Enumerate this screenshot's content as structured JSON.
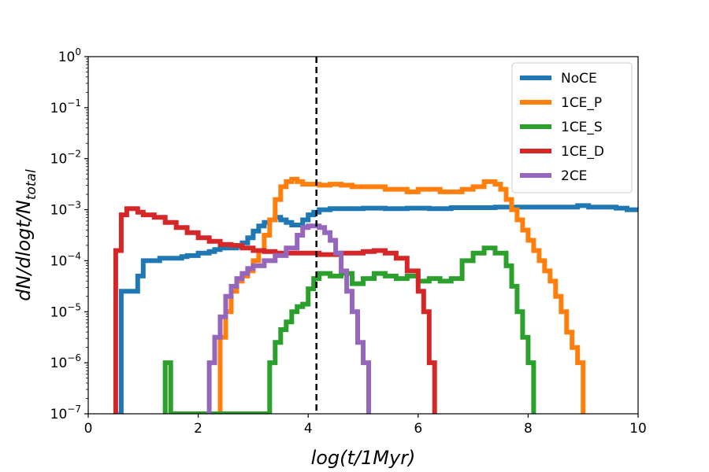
{
  "chart_data": {
    "type": "line",
    "title": "",
    "xlabel": "log(t/1Myr)",
    "ylabel": "dN/dlogt/N",
    "ylabel_sub": "total",
    "xlim": [
      0,
      10
    ],
    "ylim_log10": [
      -7,
      0
    ],
    "x_ticks": [
      0,
      2,
      4,
      6,
      8,
      10
    ],
    "x_tick_labels": [
      "0",
      "2",
      "4",
      "6",
      "8",
      "10"
    ],
    "y_ticks_log10": [
      -7,
      -6,
      -5,
      -4,
      -3,
      -2,
      -1,
      0
    ],
    "y_tick_bases": [
      "10",
      "10",
      "10",
      "10",
      "10",
      "10",
      "10",
      "10"
    ],
    "y_tick_exps": [
      "−7",
      "−6",
      "−5",
      "−4",
      "−3",
      "−2",
      "−1",
      "0"
    ],
    "vline_x": 4.15,
    "legend_position": "top-right",
    "series": [
      {
        "name": "NoCE",
        "color": "#1f77b4",
        "points": [
          [
            0.55,
            -7
          ],
          [
            0.6,
            -4.6
          ],
          [
            0.7,
            -4.6
          ],
          [
            0.8,
            -4.6
          ],
          [
            0.9,
            -4.3
          ],
          [
            1.0,
            -4.0
          ],
          [
            1.1,
            -4.0
          ],
          [
            1.2,
            -4.0
          ],
          [
            1.3,
            -3.95
          ],
          [
            1.4,
            -3.95
          ],
          [
            1.5,
            -3.95
          ],
          [
            1.6,
            -3.95
          ],
          [
            1.7,
            -3.92
          ],
          [
            1.8,
            -3.9
          ],
          [
            1.9,
            -3.9
          ],
          [
            2.0,
            -3.85
          ],
          [
            2.1,
            -3.85
          ],
          [
            2.2,
            -3.82
          ],
          [
            2.3,
            -3.78
          ],
          [
            2.4,
            -3.75
          ],
          [
            2.5,
            -3.75
          ],
          [
            2.6,
            -3.75
          ],
          [
            2.7,
            -3.72
          ],
          [
            2.8,
            -3.65
          ],
          [
            2.9,
            -3.55
          ],
          [
            3.0,
            -3.42
          ],
          [
            3.1,
            -3.32
          ],
          [
            3.2,
            -3.25
          ],
          [
            3.3,
            -3.2
          ],
          [
            3.4,
            -3.15
          ],
          [
            3.5,
            -3.2
          ],
          [
            3.6,
            -3.25
          ],
          [
            3.7,
            -3.3
          ],
          [
            3.8,
            -3.3
          ],
          [
            3.9,
            -3.2
          ],
          [
            4.0,
            -3.1
          ],
          [
            4.1,
            -3.05
          ],
          [
            4.2,
            -3.0
          ],
          [
            4.4,
            -2.98
          ],
          [
            4.6,
            -2.98
          ],
          [
            5.0,
            -2.97
          ],
          [
            5.4,
            -2.98
          ],
          [
            5.8,
            -2.97
          ],
          [
            6.2,
            -2.98
          ],
          [
            6.6,
            -2.96
          ],
          [
            7.0,
            -2.96
          ],
          [
            7.4,
            -2.95
          ],
          [
            7.8,
            -2.95
          ],
          [
            8.2,
            -2.95
          ],
          [
            8.6,
            -2.95
          ],
          [
            8.9,
            -2.92
          ],
          [
            9.1,
            -2.95
          ],
          [
            9.3,
            -2.95
          ],
          [
            9.6,
            -2.97
          ],
          [
            9.8,
            -3.0
          ],
          [
            10.0,
            -3.02
          ]
        ]
      },
      {
        "name": "1CE_P",
        "color": "#ff7f0e",
        "points": [
          [
            2.3,
            -7
          ],
          [
            2.4,
            -5.5
          ],
          [
            2.5,
            -5.0
          ],
          [
            2.6,
            -4.6
          ],
          [
            2.7,
            -4.4
          ],
          [
            2.8,
            -4.3
          ],
          [
            2.9,
            -4.2
          ],
          [
            3.0,
            -4.0
          ],
          [
            3.1,
            -3.8
          ],
          [
            3.2,
            -3.5
          ],
          [
            3.3,
            -3.2
          ],
          [
            3.4,
            -2.8
          ],
          [
            3.5,
            -2.55
          ],
          [
            3.6,
            -2.45
          ],
          [
            3.7,
            -2.4
          ],
          [
            3.8,
            -2.45
          ],
          [
            3.9,
            -2.5
          ],
          [
            4.0,
            -2.5
          ],
          [
            4.2,
            -2.52
          ],
          [
            4.4,
            -2.5
          ],
          [
            4.6,
            -2.52
          ],
          [
            4.8,
            -2.55
          ],
          [
            5.0,
            -2.55
          ],
          [
            5.4,
            -2.6
          ],
          [
            5.8,
            -2.65
          ],
          [
            6.0,
            -2.6
          ],
          [
            6.4,
            -2.65
          ],
          [
            6.8,
            -2.6
          ],
          [
            7.0,
            -2.55
          ],
          [
            7.2,
            -2.45
          ],
          [
            7.4,
            -2.5
          ],
          [
            7.5,
            -2.6
          ],
          [
            7.6,
            -2.8
          ],
          [
            7.7,
            -3.0
          ],
          [
            7.8,
            -3.2
          ],
          [
            7.9,
            -3.4
          ],
          [
            8.0,
            -3.6
          ],
          [
            8.1,
            -3.8
          ],
          [
            8.2,
            -4.0
          ],
          [
            8.3,
            -4.2
          ],
          [
            8.4,
            -4.4
          ],
          [
            8.5,
            -4.7
          ],
          [
            8.6,
            -5.0
          ],
          [
            8.7,
            -5.4
          ],
          [
            8.8,
            -5.7
          ],
          [
            8.9,
            -6.0
          ],
          [
            9.0,
            -7
          ]
        ]
      },
      {
        "name": "1CE_S",
        "color": "#2ca02c",
        "points": [
          [
            1.4,
            -7
          ],
          [
            1.4,
            -6.0
          ],
          [
            1.5,
            -6.0
          ],
          [
            1.5,
            -7
          ],
          [
            3.2,
            -7
          ],
          [
            3.3,
            -6.0
          ],
          [
            3.4,
            -5.6
          ],
          [
            3.5,
            -5.35
          ],
          [
            3.6,
            -5.2
          ],
          [
            3.7,
            -5.0
          ],
          [
            3.8,
            -4.9
          ],
          [
            3.9,
            -4.85
          ],
          [
            4.0,
            -4.55
          ],
          [
            4.1,
            -4.35
          ],
          [
            4.2,
            -4.25
          ],
          [
            4.4,
            -4.3
          ],
          [
            4.6,
            -4.25
          ],
          [
            4.8,
            -4.45
          ],
          [
            5.0,
            -4.35
          ],
          [
            5.2,
            -4.25
          ],
          [
            5.4,
            -4.3
          ],
          [
            5.6,
            -4.35
          ],
          [
            5.8,
            -4.3
          ],
          [
            6.0,
            -4.4
          ],
          [
            6.2,
            -4.35
          ],
          [
            6.4,
            -4.4
          ],
          [
            6.6,
            -4.35
          ],
          [
            6.8,
            -4.0
          ],
          [
            7.0,
            -3.85
          ],
          [
            7.2,
            -3.75
          ],
          [
            7.4,
            -3.85
          ],
          [
            7.6,
            -4.1
          ],
          [
            7.7,
            -4.5
          ],
          [
            7.8,
            -5.0
          ],
          [
            7.9,
            -5.5
          ],
          [
            8.0,
            -6.0
          ],
          [
            8.1,
            -7
          ]
        ]
      },
      {
        "name": "1CE_D",
        "color": "#d62728",
        "points": [
          [
            0.5,
            -7
          ],
          [
            0.5,
            -3.8
          ],
          [
            0.6,
            -3.1
          ],
          [
            0.7,
            -2.98
          ],
          [
            0.8,
            -2.98
          ],
          [
            0.9,
            -3.05
          ],
          [
            1.0,
            -3.1
          ],
          [
            1.2,
            -3.15
          ],
          [
            1.4,
            -3.25
          ],
          [
            1.6,
            -3.35
          ],
          [
            1.8,
            -3.45
          ],
          [
            2.0,
            -3.55
          ],
          [
            2.2,
            -3.62
          ],
          [
            2.4,
            -3.68
          ],
          [
            2.6,
            -3.7
          ],
          [
            2.8,
            -3.75
          ],
          [
            3.0,
            -3.8
          ],
          [
            3.2,
            -3.82
          ],
          [
            3.4,
            -3.85
          ],
          [
            3.6,
            -3.85
          ],
          [
            3.8,
            -3.85
          ],
          [
            4.0,
            -3.85
          ],
          [
            4.2,
            -3.88
          ],
          [
            4.4,
            -3.88
          ],
          [
            4.6,
            -3.85
          ],
          [
            4.8,
            -3.85
          ],
          [
            5.0,
            -3.82
          ],
          [
            5.2,
            -3.8
          ],
          [
            5.4,
            -3.85
          ],
          [
            5.6,
            -3.95
          ],
          [
            5.8,
            -4.2
          ],
          [
            6.0,
            -4.6
          ],
          [
            6.1,
            -5.0
          ],
          [
            6.2,
            -6.0
          ],
          [
            6.3,
            -7
          ]
        ]
      },
      {
        "name": "2CE",
        "color": "#9467bd",
        "points": [
          [
            2.2,
            -7
          ],
          [
            2.2,
            -6.0
          ],
          [
            2.3,
            -5.5
          ],
          [
            2.4,
            -5.1
          ],
          [
            2.5,
            -4.7
          ],
          [
            2.6,
            -4.5
          ],
          [
            2.7,
            -4.35
          ],
          [
            2.8,
            -4.25
          ],
          [
            2.9,
            -4.15
          ],
          [
            3.0,
            -4.1
          ],
          [
            3.2,
            -4.0
          ],
          [
            3.4,
            -3.9
          ],
          [
            3.6,
            -3.75
          ],
          [
            3.8,
            -3.5
          ],
          [
            3.9,
            -3.35
          ],
          [
            4.0,
            -3.32
          ],
          [
            4.2,
            -3.35
          ],
          [
            4.3,
            -3.45
          ],
          [
            4.4,
            -3.6
          ],
          [
            4.5,
            -3.85
          ],
          [
            4.6,
            -4.2
          ],
          [
            4.7,
            -4.6
          ],
          [
            4.8,
            -5.0
          ],
          [
            4.9,
            -5.6
          ],
          [
            5.0,
            -6.0
          ],
          [
            5.1,
            -7
          ]
        ]
      }
    ]
  }
}
